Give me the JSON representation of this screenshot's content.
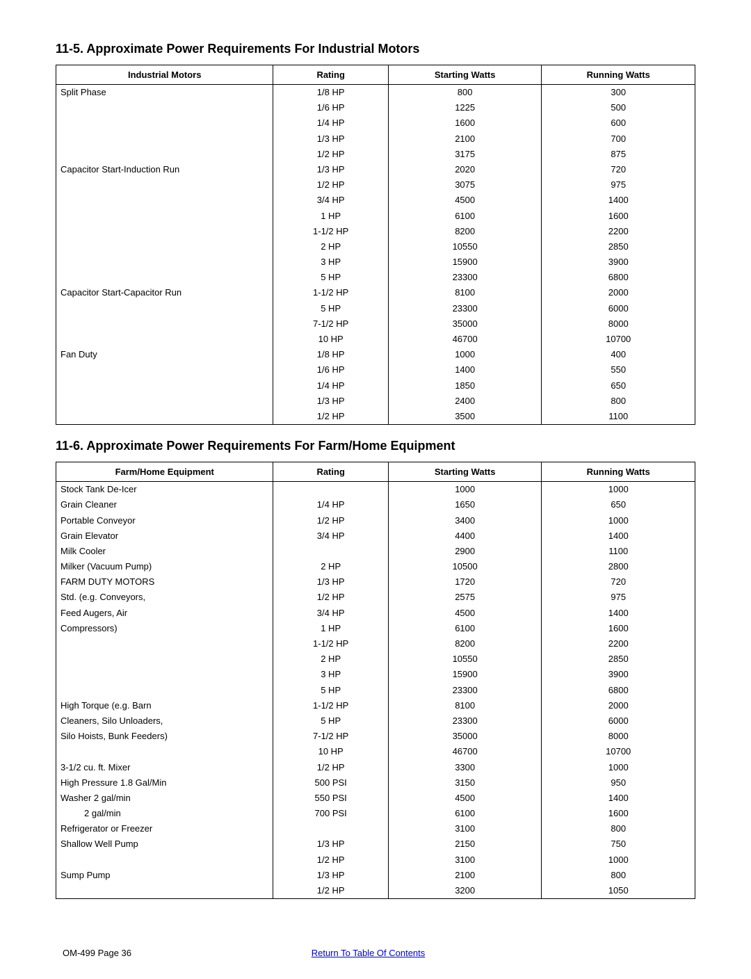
{
  "section1": {
    "title": "11-5.  Approximate Power Requirements For Industrial Motors",
    "headers": [
      "Industrial Motors",
      "Rating",
      "Starting Watts",
      "Running Watts"
    ],
    "rows": [
      {
        "label": "Split Phase",
        "rating": "1/8 HP",
        "starting": "800",
        "running": "300"
      },
      {
        "label": "",
        "rating": "1/6 HP",
        "starting": "1225",
        "running": "500"
      },
      {
        "label": "",
        "rating": "1/4 HP",
        "starting": "1600",
        "running": "600"
      },
      {
        "label": "",
        "rating": "1/3 HP",
        "starting": "2100",
        "running": "700"
      },
      {
        "label": "",
        "rating": "1/2 HP",
        "starting": "3175",
        "running": "875"
      },
      {
        "label": "Capacitor Start-Induction Run",
        "rating": "1/3 HP",
        "starting": "2020",
        "running": "720"
      },
      {
        "label": "",
        "rating": "1/2 HP",
        "starting": "3075",
        "running": "975"
      },
      {
        "label": "",
        "rating": "3/4 HP",
        "starting": "4500",
        "running": "1400"
      },
      {
        "label": "",
        "rating": "1 HP",
        "starting": "6100",
        "running": "1600"
      },
      {
        "label": "",
        "rating": "1-1/2 HP",
        "starting": "8200",
        "running": "2200"
      },
      {
        "label": "",
        "rating": "2 HP",
        "starting": "10550",
        "running": "2850"
      },
      {
        "label": "",
        "rating": "3 HP",
        "starting": "15900",
        "running": "3900"
      },
      {
        "label": "",
        "rating": "5 HP",
        "starting": "23300",
        "running": "6800"
      },
      {
        "label": "Capacitor Start-Capacitor Run",
        "rating": "1-1/2 HP",
        "starting": "8100",
        "running": "2000"
      },
      {
        "label": "",
        "rating": "5 HP",
        "starting": "23300",
        "running": "6000"
      },
      {
        "label": "",
        "rating": "7-1/2 HP",
        "starting": "35000",
        "running": "8000"
      },
      {
        "label": "",
        "rating": "10 HP",
        "starting": "46700",
        "running": "10700"
      },
      {
        "label": "Fan Duty",
        "rating": "1/8 HP",
        "starting": "1000",
        "running": "400"
      },
      {
        "label": "",
        "rating": "1/6 HP",
        "starting": "1400",
        "running": "550"
      },
      {
        "label": "",
        "rating": "1/4 HP",
        "starting": "1850",
        "running": "650"
      },
      {
        "label": "",
        "rating": "1/3 HP",
        "starting": "2400",
        "running": "800"
      },
      {
        "label": "",
        "rating": "1/2 HP",
        "starting": "3500",
        "running": "1100"
      }
    ]
  },
  "section2": {
    "title": "11-6.  Approximate Power Requirements For Farm/Home Equipment",
    "headers": [
      "Farm/Home Equipment",
      "Rating",
      "Starting Watts",
      "Running Watts"
    ],
    "rows": [
      {
        "label": "Stock Tank De-Icer",
        "rating": "",
        "starting": "1000",
        "running": "1000"
      },
      {
        "label": "Grain Cleaner",
        "rating": "1/4 HP",
        "starting": "1650",
        "running": "650"
      },
      {
        "label": "Portable Conveyor",
        "rating": "1/2 HP",
        "starting": "3400",
        "running": "1000"
      },
      {
        "label": "Grain Elevator",
        "rating": "3/4 HP",
        "starting": "4400",
        "running": "1400"
      },
      {
        "label": "Milk Cooler",
        "rating": "",
        "starting": "2900",
        "running": "1100"
      },
      {
        "label": "Milker (Vacuum Pump)",
        "rating": "2 HP",
        "starting": "10500",
        "running": "2800"
      },
      {
        "label": "FARM DUTY MOTORS",
        "rating": "1/3 HP",
        "starting": "1720",
        "running": "720"
      },
      {
        "label": "Std. (e.g. Conveyors,",
        "rating": "1/2 HP",
        "starting": "2575",
        "running": "975"
      },
      {
        "label": "Feed Augers, Air",
        "rating": "3/4 HP",
        "starting": "4500",
        "running": "1400"
      },
      {
        "label": "Compressors)",
        "rating": "1 HP",
        "starting": "6100",
        "running": "1600"
      },
      {
        "label": "",
        "rating": "1-1/2 HP",
        "starting": "8200",
        "running": "2200"
      },
      {
        "label": "",
        "rating": "2 HP",
        "starting": "10550",
        "running": "2850"
      },
      {
        "label": "",
        "rating": "3 HP",
        "starting": "15900",
        "running": "3900"
      },
      {
        "label": "",
        "rating": "5 HP",
        "starting": "23300",
        "running": "6800"
      },
      {
        "label": "High Torque (e.g. Barn",
        "rating": "1-1/2 HP",
        "starting": "8100",
        "running": "2000"
      },
      {
        "label": "Cleaners, Silo Unloaders,",
        "rating": "5 HP",
        "starting": "23300",
        "running": "6000"
      },
      {
        "label": "Silo Hoists, Bunk Feeders)",
        "rating": "7-1/2 HP",
        "starting": "35000",
        "running": "8000"
      },
      {
        "label": "",
        "rating": "10 HP",
        "starting": "46700",
        "running": "10700"
      },
      {
        "label": "3-1/2 cu. ft. Mixer",
        "rating": "1/2 HP",
        "starting": "3300",
        "running": "1000"
      },
      {
        "label": "High Pressure 1.8 Gal/Min",
        "rating": "500 PSI",
        "starting": "3150",
        "running": "950"
      },
      {
        "label": "Washer 2 gal/min",
        "rating": "550 PSI",
        "starting": "4500",
        "running": "1400"
      },
      {
        "label": "        2 gal/min",
        "indent": true,
        "rating": "700 PSI",
        "starting": "6100",
        "running": "1600"
      },
      {
        "label": "Refrigerator or Freezer",
        "rating": "",
        "starting": "3100",
        "running": "800"
      },
      {
        "label": "Shallow Well Pump",
        "rating": "1/3 HP",
        "starting": "2150",
        "running": "750"
      },
      {
        "label": "",
        "rating": "1/2 HP",
        "starting": "3100",
        "running": "1000"
      },
      {
        "label": "Sump Pump",
        "rating": "1/3 HP",
        "starting": "2100",
        "running": "800"
      },
      {
        "label": "",
        "rating": "1/2 HP",
        "starting": "3200",
        "running": "1050"
      }
    ]
  },
  "footer": {
    "left": "OM-499 Page 36",
    "centerLink": "Return To Table Of Contents"
  }
}
